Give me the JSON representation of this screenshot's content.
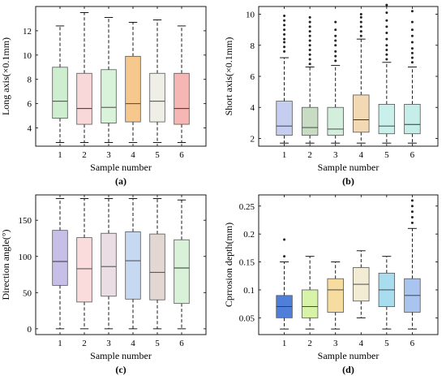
{
  "chart_data": [
    {
      "type": "box",
      "panel_label": "(a)",
      "xlabel": "Sample number",
      "ylabel": "Long axis(×0.1mm)",
      "ylim": [
        2.5,
        14
      ],
      "yticks": [
        4,
        6,
        8,
        10,
        12
      ],
      "ytick_labels": [
        "4",
        "6",
        "8",
        "10",
        "12"
      ],
      "categories": [
        "1",
        "2",
        "3",
        "4",
        "5",
        "6"
      ],
      "colors": [
        "#cdeecf",
        "#f8d8d8",
        "#d9f3da",
        "#f7c88e",
        "#efefe8",
        "#f5b6b4"
      ],
      "series": [
        {
          "min": 2.8,
          "q1": 4.8,
          "median": 6.2,
          "q3": 9.0,
          "max": 12.4,
          "outliers": []
        },
        {
          "min": 2.8,
          "q1": 4.3,
          "median": 5.6,
          "q3": 8.5,
          "max": 13.5,
          "outliers": []
        },
        {
          "min": 2.8,
          "q1": 4.4,
          "median": 5.7,
          "q3": 8.8,
          "max": 13.1,
          "outliers": []
        },
        {
          "min": 2.8,
          "q1": 4.5,
          "median": 6.0,
          "q3": 9.9,
          "max": 12.7,
          "outliers": []
        },
        {
          "min": 2.8,
          "q1": 4.5,
          "median": 6.2,
          "q3": 8.5,
          "max": 12.9,
          "outliers": []
        },
        {
          "min": 2.8,
          "q1": 4.3,
          "median": 5.6,
          "q3": 8.5,
          "max": 12.4,
          "outliers": []
        }
      ]
    },
    {
      "type": "box",
      "panel_label": "(b)",
      "xlabel": "Sample number",
      "ylabel": "Short axis(×0.1mm)",
      "ylim": [
        1.5,
        10.5
      ],
      "yticks": [
        2,
        4,
        6,
        8,
        10
      ],
      "ytick_labels": [
        "2",
        "4",
        "6",
        "8",
        "10"
      ],
      "categories": [
        "1",
        "2",
        "3",
        "4",
        "5",
        "6"
      ],
      "colors": [
        "#c5cdf0",
        "#c8dcc4",
        "#d3eedd",
        "#f3d8b4",
        "#c9f0ea",
        "#c6eee9"
      ],
      "series": [
        {
          "min": 1.7,
          "q1": 2.2,
          "median": 2.8,
          "q3": 4.4,
          "max": 7.2,
          "outliers": [
            7.6,
            7.9,
            8.2,
            8.4,
            8.7,
            9.0,
            9.3,
            9.6,
            9.9
          ]
        },
        {
          "min": 1.7,
          "q1": 2.2,
          "median": 2.7,
          "q3": 4.0,
          "max": 6.6,
          "outliers": [
            6.8,
            7.1,
            7.4,
            7.7,
            8.0,
            8.3,
            8.6,
            8.9,
            9.2,
            9.5,
            9.8
          ]
        },
        {
          "min": 1.7,
          "q1": 2.2,
          "median": 2.6,
          "q3": 4.0,
          "max": 6.7,
          "outliers": [
            7.0,
            7.3,
            7.6,
            8.0,
            8.3,
            8.6,
            9.0,
            9.5
          ]
        },
        {
          "min": 1.7,
          "q1": 2.4,
          "median": 3.2,
          "q3": 4.8,
          "max": 8.4,
          "outliers": [
            8.6,
            8.9,
            9.2,
            9.5,
            9.8,
            10.0
          ]
        },
        {
          "min": 1.7,
          "q1": 2.3,
          "median": 2.8,
          "q3": 4.2,
          "max": 6.9,
          "outliers": [
            7.1,
            7.4,
            7.7,
            8.0,
            8.4,
            8.8,
            9.2,
            9.6,
            10.1,
            10.6
          ]
        },
        {
          "min": 1.7,
          "q1": 2.3,
          "median": 2.9,
          "q3": 4.2,
          "max": 6.6,
          "outliers": [
            6.9,
            7.2,
            7.5,
            7.8,
            8.2,
            8.6,
            9.0,
            9.5,
            10.2
          ]
        }
      ]
    },
    {
      "type": "box",
      "panel_label": "(c)",
      "xlabel": "Sample number",
      "ylabel": "Direction angle(°)",
      "ylim": [
        -8,
        185
      ],
      "yticks": [
        0,
        50,
        100,
        150
      ],
      "ytick_labels": [
        "0",
        "50",
        "100",
        "150"
      ],
      "categories": [
        "1",
        "2",
        "3",
        "4",
        "5",
        "6"
      ],
      "colors": [
        "#c7bfe8",
        "#fadcdc",
        "#eadde4",
        "#c7d9f2",
        "#e3d7d4",
        "#d9f0d9"
      ],
      "series": [
        {
          "min": 0,
          "q1": 60,
          "median": 93,
          "q3": 136,
          "max": 180,
          "outliers": []
        },
        {
          "min": 0,
          "q1": 37,
          "median": 83,
          "q3": 126,
          "max": 180,
          "outliers": []
        },
        {
          "min": 0,
          "q1": 45,
          "median": 86,
          "q3": 132,
          "max": 180,
          "outliers": []
        },
        {
          "min": 0,
          "q1": 41,
          "median": 94,
          "q3": 134,
          "max": 180,
          "outliers": []
        },
        {
          "min": 0,
          "q1": 40,
          "median": 78,
          "q3": 131,
          "max": 180,
          "outliers": []
        },
        {
          "min": 0,
          "q1": 35,
          "median": 84,
          "q3": 123,
          "max": 178,
          "outliers": []
        }
      ]
    },
    {
      "type": "box",
      "panel_label": "(d)",
      "xlabel": "Sample number",
      "ylabel": "Cprrosion depth(mm)",
      "ylim": [
        0.02,
        0.27
      ],
      "yticks": [
        0.05,
        0.1,
        0.15,
        0.2,
        0.25
      ],
      "ytick_labels": [
        "0.05",
        "0.1",
        "0.15",
        "0.2",
        "0.25"
      ],
      "categories": [
        "1",
        "2",
        "3",
        "4",
        "5",
        "6"
      ],
      "colors": [
        "#4f7fd8",
        "#d7f3a8",
        "#f7dca0",
        "#f3ecd4",
        "#a8dcef",
        "#a9c4ee"
      ],
      "series": [
        {
          "min": 0.03,
          "q1": 0.05,
          "median": 0.07,
          "q3": 0.09,
          "max": 0.15,
          "outliers": [
            0.16,
            0.19
          ]
        },
        {
          "min": 0.03,
          "q1": 0.05,
          "median": 0.07,
          "q3": 0.1,
          "max": 0.16,
          "outliers": []
        },
        {
          "min": 0.03,
          "q1": 0.06,
          "median": 0.1,
          "q3": 0.12,
          "max": 0.15,
          "outliers": []
        },
        {
          "min": 0.05,
          "q1": 0.08,
          "median": 0.11,
          "q3": 0.14,
          "max": 0.17,
          "outliers": []
        },
        {
          "min": 0.03,
          "q1": 0.07,
          "median": 0.1,
          "q3": 0.13,
          "max": 0.16,
          "outliers": []
        },
        {
          "min": 0.03,
          "q1": 0.06,
          "median": 0.09,
          "q3": 0.12,
          "max": 0.21,
          "outliers": [
            0.22,
            0.23,
            0.24,
            0.25,
            0.26
          ]
        }
      ]
    }
  ]
}
